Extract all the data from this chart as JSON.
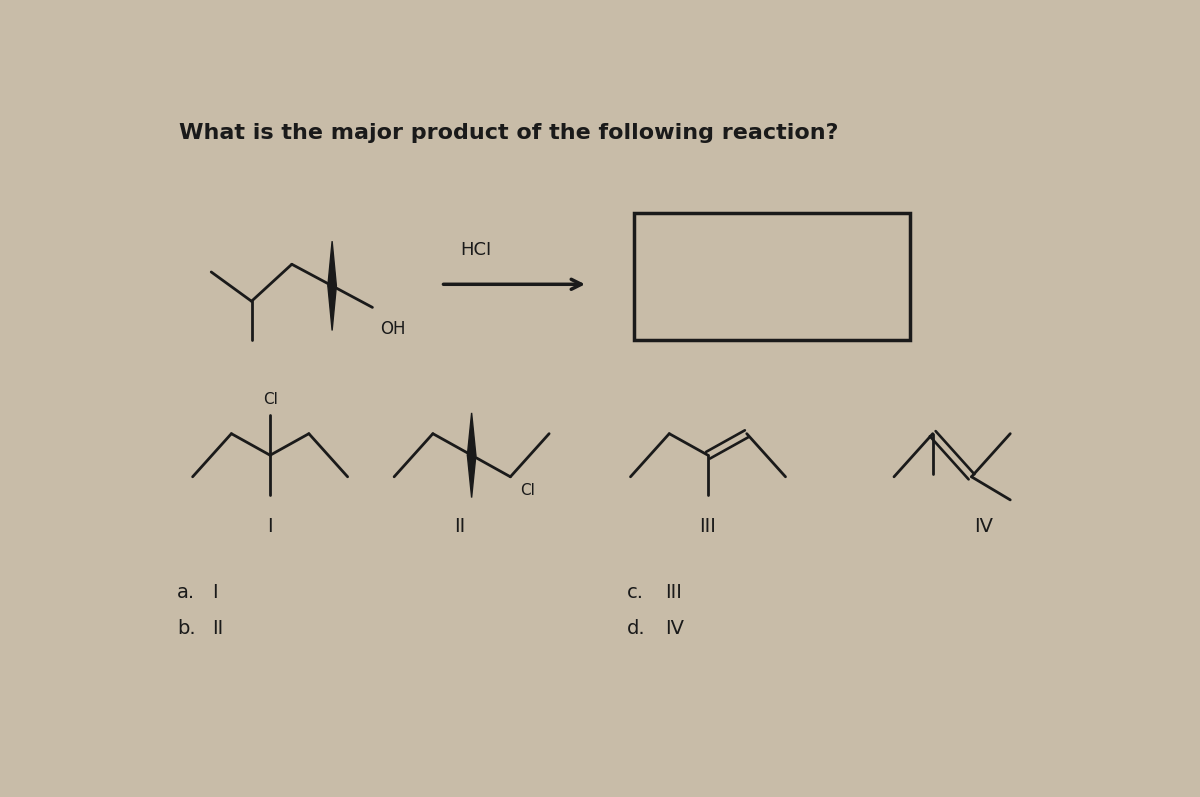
{
  "bg_color": "#c8bca8",
  "line_color": "#1a1a1a",
  "title": "What is the major product of the following reaction?",
  "hcl_text": "HCI",
  "oh_text": "OH",
  "cl_text1": "Cl",
  "cl_text2": "Cl",
  "label_I": "I",
  "label_II": "II",
  "label_III": "III",
  "label_IV": "IV",
  "ans_a": "a.",
  "ans_b": "b.",
  "ans_c": "c.",
  "ans_d": "d.",
  "ans_a_val": "I",
  "ans_b_val": "II",
  "ans_c_val": "III",
  "ans_d_val": "IV"
}
